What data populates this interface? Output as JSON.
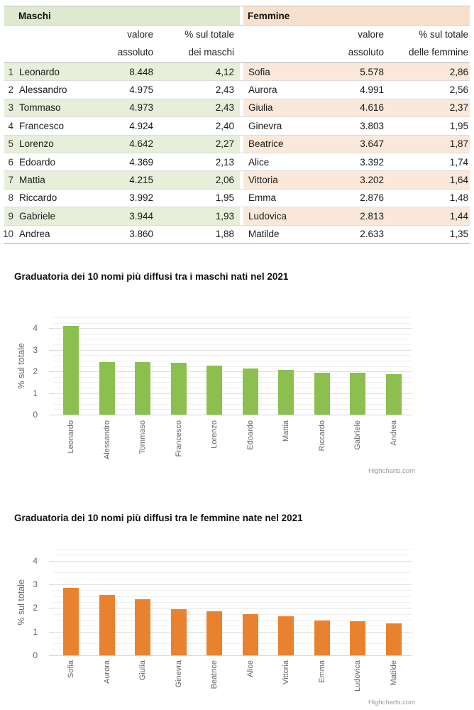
{
  "table": {
    "male_header": "Maschi",
    "female_header": "Femmine",
    "columns": {
      "value_line1": "valore",
      "value_line2": "assoluto",
      "pct_line1": "% sul totale",
      "male_pct_line2": "dei maschi",
      "female_pct_line2": "delle femmine"
    },
    "rows": [
      {
        "rank": "1",
        "m_name": "Leonardo",
        "m_value": "8.448",
        "m_pct": "4,12",
        "f_name": "Sofia",
        "f_value": "5.578",
        "f_pct": "2,86"
      },
      {
        "rank": "2",
        "m_name": "Alessandro",
        "m_value": "4.975",
        "m_pct": "2,43",
        "f_name": "Aurora",
        "f_value": "4.991",
        "f_pct": "2,56"
      },
      {
        "rank": "3",
        "m_name": "Tommaso",
        "m_value": "4.973",
        "m_pct": "2,43",
        "f_name": "Giulia",
        "f_value": "4.616",
        "f_pct": "2,37"
      },
      {
        "rank": "4",
        "m_name": "Francesco",
        "m_value": "4.924",
        "m_pct": "2,40",
        "f_name": "Ginevra",
        "f_value": "3.803",
        "f_pct": "1,95"
      },
      {
        "rank": "5",
        "m_name": "Lorenzo",
        "m_value": "4.642",
        "m_pct": "2,27",
        "f_name": "Beatrice",
        "f_value": "3.647",
        "f_pct": "1,87"
      },
      {
        "rank": "6",
        "m_name": "Edoardo",
        "m_value": "4.369",
        "m_pct": "2,13",
        "f_name": "Alice",
        "f_value": "3.392",
        "f_pct": "1,74"
      },
      {
        "rank": "7",
        "m_name": "Mattia",
        "m_value": "4.215",
        "m_pct": "2,06",
        "f_name": "Vittoria",
        "f_value": "3.202",
        "f_pct": "1,64"
      },
      {
        "rank": "8",
        "m_name": "Riccardo",
        "m_value": "3.992",
        "m_pct": "1,95",
        "f_name": "Emma",
        "f_value": "2.876",
        "f_pct": "1,48"
      },
      {
        "rank": "9",
        "m_name": "Gabriele",
        "m_value": "3.944",
        "m_pct": "1,93",
        "f_name": "Ludovica",
        "f_value": "2.813",
        "f_pct": "1,44"
      },
      {
        "rank": "10",
        "m_name": "Andrea",
        "m_value": "3.860",
        "m_pct": "1,88",
        "f_name": "Matilde",
        "f_value": "2.633",
        "f_pct": "1,35"
      }
    ]
  },
  "chart_data": [
    {
      "type": "bar",
      "title": "Graduatoria dei 10 nomi più diffusi tra i maschi nati nel 2021",
      "ylabel": "% sul totale",
      "xlabel": "",
      "categories": [
        "Leonardo",
        "Alessandro",
        "Tommaso",
        "Francesco",
        "Lorenzo",
        "Edoardo",
        "Mattia",
        "Riccardo",
        "Gabriele",
        "Andrea"
      ],
      "values": [
        4.12,
        2.43,
        2.43,
        2.4,
        2.27,
        2.13,
        2.06,
        1.95,
        1.93,
        1.88
      ],
      "ylim": [
        0,
        4.5
      ],
      "yticks": [
        0,
        1,
        2,
        3,
        4
      ],
      "bar_color": "#8cbf4d",
      "grid": "on",
      "legend": "none",
      "credit": "Highcharts.com"
    },
    {
      "type": "bar",
      "title": "Graduatoria dei 10 nomi più diffusi tra le femmine nate nel 2021",
      "ylabel": "% sul totale",
      "xlabel": "",
      "categories": [
        "Sofia",
        "Aurora",
        "Giulia",
        "Ginevra",
        "Beatrice",
        "Alice",
        "Vittoria",
        "Emma",
        "Ludovica",
        "Matilde"
      ],
      "values": [
        2.86,
        2.56,
        2.37,
        1.95,
        1.87,
        1.74,
        1.64,
        1.48,
        1.44,
        1.35
      ],
      "ylim": [
        0,
        4.5
      ],
      "yticks": [
        0,
        1,
        2,
        3,
        4
      ],
      "bar_color": "#e8822f",
      "grid": "on",
      "legend": "none",
      "credit": "Highcharts.com"
    }
  ]
}
